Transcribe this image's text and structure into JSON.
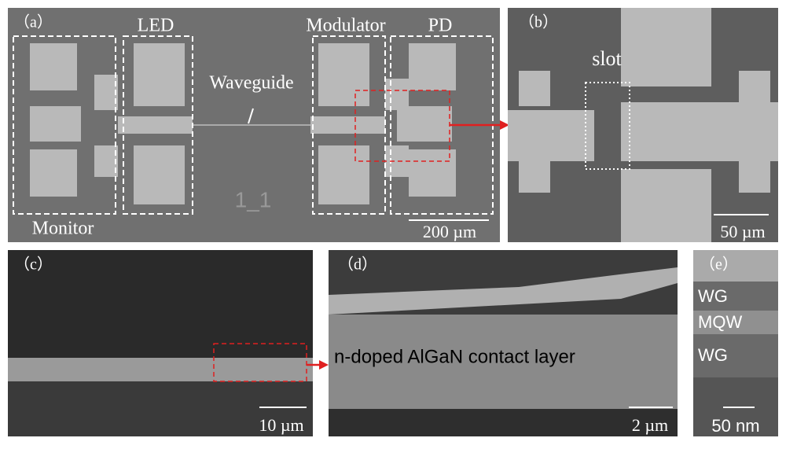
{
  "panels": [
    {
      "label": "（a）",
      "texts": [
        "LED",
        "Modulator",
        "PD",
        "Waveguide",
        "Monitor",
        "1_1"
      ],
      "scale_bar": "200 µm"
    },
    {
      "label": "（b）",
      "texts": [
        "slot"
      ],
      "scale_bar": "50 µm"
    },
    {
      "label": "（c）",
      "texts": [],
      "scale_bar": "10 µm"
    },
    {
      "label": "（d）",
      "texts": [],
      "scale_bar": "2 µm"
    },
    {
      "label": "（e）",
      "texts": [
        "WG",
        "MQW",
        "WG"
      ],
      "scale_bar": "50 nm"
    }
  ],
  "annotation": "n-doped AlGaN contact layer"
}
